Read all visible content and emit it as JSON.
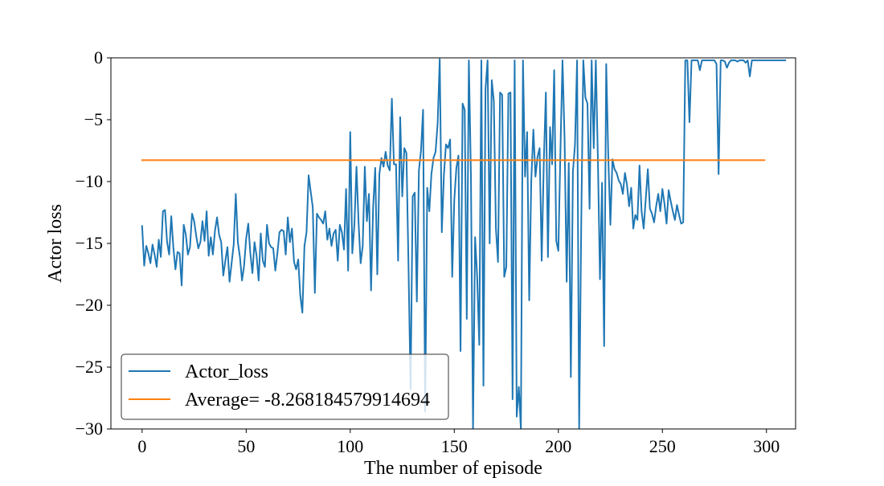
{
  "chart_data": {
    "type": "line",
    "title": "",
    "xlabel": "The number of episode",
    "ylabel": "Actor loss",
    "xlim": [
      -15,
      314
    ],
    "ylim": [
      -30,
      0
    ],
    "x_ticks": [
      0,
      50,
      100,
      150,
      200,
      250,
      300
    ],
    "y_ticks": [
      0,
      -5,
      -10,
      -15,
      -20,
      -25,
      -30
    ],
    "x_tick_labels": [
      "0",
      "50",
      "100",
      "150",
      "200",
      "250",
      "300"
    ],
    "y_tick_labels": [
      "0",
      "−5",
      "−10",
      "−15",
      "−20",
      "−25",
      "−30"
    ],
    "grid": false,
    "legend_position": "lower-left",
    "series": [
      {
        "name": "Actor_loss",
        "color": "#1f77b4",
        "x_start": 0,
        "x_step": 1,
        "values": [
          -13.6,
          -16.8,
          -15.2,
          -15.8,
          -16.6,
          -15.1,
          -15.9,
          -16.9,
          -14.7,
          -16.1,
          -12.4,
          -12.3,
          -14.9,
          -15.9,
          -12.8,
          -15.3,
          -17.1,
          -15.7,
          -15.8,
          -18.4,
          -13.5,
          -14.3,
          -15.9,
          -15.3,
          -12.6,
          -13.2,
          -14.4,
          -15.4,
          -14.9,
          -13.2,
          -14.8,
          -12.4,
          -16.0,
          -14.5,
          -15.9,
          -14.0,
          -12.9,
          -14.3,
          -14.9,
          -17.6,
          -16.4,
          -15.3,
          -18.1,
          -16.6,
          -15.1,
          -11.0,
          -14.9,
          -16.1,
          -18.0,
          -16.8,
          -14.6,
          -13.4,
          -15.8,
          -17.4,
          -14.9,
          -16.0,
          -18.0,
          -14.2,
          -16.4,
          -16.9,
          -13.5,
          -15.0,
          -15.3,
          -15.4,
          -17.2,
          -15.8,
          -14.1,
          -13.9,
          -14.0,
          -15.9,
          -12.9,
          -14.9,
          -13.8,
          -16.5,
          -17.1,
          -16.3,
          -19.2,
          -20.6,
          -15.2,
          -14.1,
          -9.5,
          -10.8,
          -12.1,
          -19.0,
          -12.6,
          -12.9,
          -13.1,
          -13.4,
          -12.4,
          -14.7,
          -13.8,
          -15.2,
          -14.2,
          -13.9,
          -16.4,
          -13.5,
          -14.1,
          -15.5,
          -10.6,
          -17.2,
          -6.0,
          -15.8,
          -13.5,
          -8.8,
          -13.3,
          -16.6,
          -15.2,
          -8.8,
          -13.2,
          -11.0,
          -18.8,
          -12.1,
          -8.9,
          -17.5,
          -9.4,
          -8.1,
          -8.8,
          -7.6,
          -8.7,
          -9.1,
          -3.3,
          -8.6,
          -8.6,
          -16.4,
          -4.8,
          -11.2,
          -7.3,
          -7.7,
          -16.8,
          -26.8,
          -11.2,
          -10.9,
          -19.7,
          -9.1,
          -7.5,
          -4.2,
          -28.6,
          -10.5,
          -12.4,
          -9.4,
          -8.1,
          -7.6,
          -5.3,
          -0.1,
          -14.1,
          -9.5,
          -7.0,
          -7.3,
          -6.6,
          -17.7,
          -11.5,
          -8.9,
          -7.9,
          -23.7,
          -3.7,
          -4.2,
          -21.1,
          -0.2,
          -9.5,
          -30.0,
          -14.5,
          -17.7,
          -23.2,
          -0.2,
          -26.5,
          -2.5,
          -0.2,
          -15.0,
          -1.8,
          -3.5,
          -13.8,
          -16.5,
          -2.8,
          -3.0,
          -17.7,
          -16.9,
          -2.9,
          -2.8,
          -27.6,
          -0.2,
          -29.0,
          -26.6,
          -30.0,
          -0.2,
          -9.6,
          -6.0,
          -19.6,
          -9.9,
          -5.8,
          -9.6,
          -8.0,
          -7.3,
          -16.4,
          -8.5,
          -2.8,
          -16.1,
          -5.6,
          -8.6,
          -1.0,
          -14.8,
          -15.6,
          -7.5,
          -0.2,
          -6.6,
          -18.1,
          -8.5,
          -25.8,
          -9.2,
          -7.0,
          -0.2,
          -30.0,
          -13.4,
          -0.2,
          -3.2,
          -3.7,
          -12.2,
          -0.2,
          -7.3,
          -0.2,
          -8.2,
          -17.9,
          -10.1,
          -23.3,
          -0.5,
          -8.0,
          -13.5,
          -8.2,
          -9.0,
          -9.3,
          -9.9,
          -10.2,
          -11.0,
          -9.3,
          -10.3,
          -12.0,
          -10.5,
          -13.8,
          -12.7,
          -13.1,
          -8.7,
          -12.4,
          -13.8,
          -11.4,
          -9.0,
          -12.2,
          -12.6,
          -13.3,
          -12.0,
          -11.0,
          -12.4,
          -10.6,
          -11.8,
          -13.4,
          -10.7,
          -11.6,
          -12.4,
          -13.1,
          -11.9,
          -12.7,
          -13.4,
          -13.3,
          -0.2,
          -0.2,
          -5.2,
          -0.2,
          -0.2,
          -0.2,
          -0.2,
          -1.0,
          -0.2,
          -0.2,
          -0.2,
          -0.2,
          -0.2,
          -0.2,
          -0.2,
          -0.5,
          -9.4,
          -0.2,
          -0.2,
          -0.3,
          -0.8,
          -0.4,
          -0.2,
          -0.2,
          -0.2,
          -0.3,
          -0.2,
          -0.2,
          -0.2,
          -0.4,
          -0.2,
          -1.5,
          -0.2,
          -0.2,
          -0.2,
          -0.2,
          -0.2,
          -0.2,
          -0.2,
          -0.2,
          -0.2,
          -0.2,
          -0.2,
          -0.2,
          -0.2,
          -0.2,
          -0.2,
          -0.2,
          -0.2
        ]
      },
      {
        "name": "Average= -8.268184579914694",
        "color": "#ff7f0e",
        "x": [
          0,
          299
        ],
        "values": [
          -8.268184579914694,
          -8.268184579914694
        ]
      }
    ]
  }
}
